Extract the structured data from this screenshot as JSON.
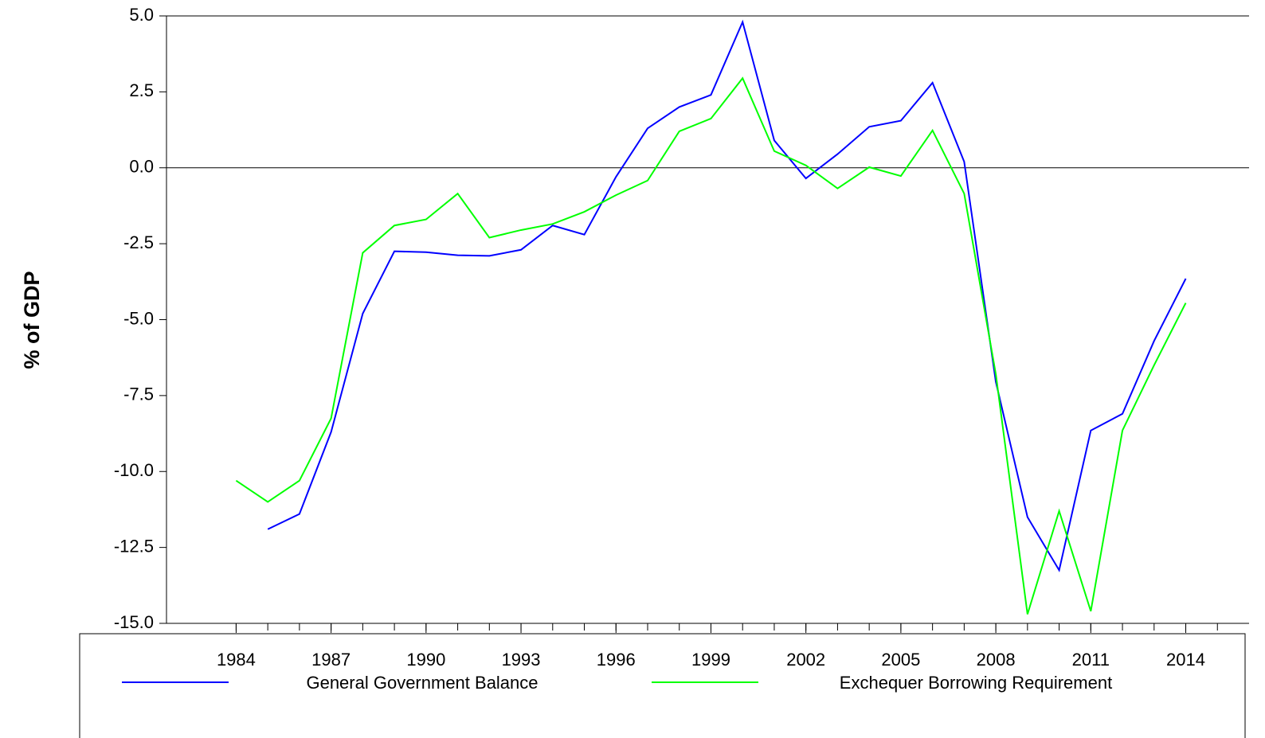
{
  "chart_data": {
    "type": "line",
    "y_label": "% of GDP",
    "x": [
      1984,
      1985,
      1986,
      1987,
      1988,
      1989,
      1990,
      1991,
      1992,
      1993,
      1994,
      1995,
      1996,
      1997,
      1998,
      1999,
      2000,
      2001,
      2002,
      2003,
      2004,
      2005,
      2006,
      2007,
      2008,
      2009,
      2010,
      2011,
      2012,
      2013,
      2014
    ],
    "series": [
      {
        "name": "General Government Balance",
        "color": "#0000ff",
        "values": [
          null,
          -11.9,
          -11.4,
          -8.7,
          -4.8,
          -2.75,
          -2.78,
          -2.88,
          -2.9,
          -2.7,
          -1.9,
          -2.2,
          -0.3,
          1.3,
          2.0,
          2.4,
          4.8,
          0.9,
          -0.35,
          0.45,
          1.35,
          1.55,
          2.8,
          0.2,
          -7.05,
          -11.5,
          -13.25,
          -8.65,
          -8.1,
          -5.7,
          -3.65
        ]
      },
      {
        "name": "Exchequer Borrowing Requirement",
        "color": "#00ff00",
        "values": [
          -10.3,
          -11.0,
          -10.3,
          -8.25,
          -2.8,
          -1.9,
          -1.7,
          -0.85,
          -2.3,
          -2.05,
          -1.85,
          -1.45,
          -0.9,
          -0.42,
          1.2,
          1.62,
          2.95,
          0.55,
          0.08,
          -0.68,
          0.02,
          -0.27,
          1.23,
          -0.85,
          -6.8,
          -14.7,
          -11.3,
          -14.6,
          -8.65,
          -6.5,
          -4.45
        ]
      }
    ],
    "xlim": [
      1981.8,
      2016
    ],
    "xticks": [
      1984,
      1987,
      1990,
      1993,
      1996,
      1999,
      2002,
      2005,
      2008,
      2011,
      2014
    ],
    "xminorticks": [
      1984,
      1985,
      1986,
      1987,
      1988,
      1989,
      1990,
      1991,
      1992,
      1993,
      1994,
      1995,
      1996,
      1997,
      1998,
      1999,
      2000,
      2001,
      2002,
      2003,
      2004,
      2005,
      2006,
      2007,
      2008,
      2009,
      2010,
      2011,
      2012,
      2013,
      2014,
      2015
    ],
    "ylim": [
      -15,
      5
    ],
    "yticks": [
      {
        "value": -15,
        "label": "-15.0"
      },
      -12.5,
      {
        "value": -10,
        "label": "-10.0"
      },
      -7.5,
      {
        "value": -5,
        "label": "-5.0"
      },
      -2.5,
      {
        "value": 0,
        "label": "0.0"
      },
      2.5,
      {
        "value": 5,
        "label": "5.0"
      }
    ],
    "zero_line": true,
    "legend": "bottom"
  }
}
